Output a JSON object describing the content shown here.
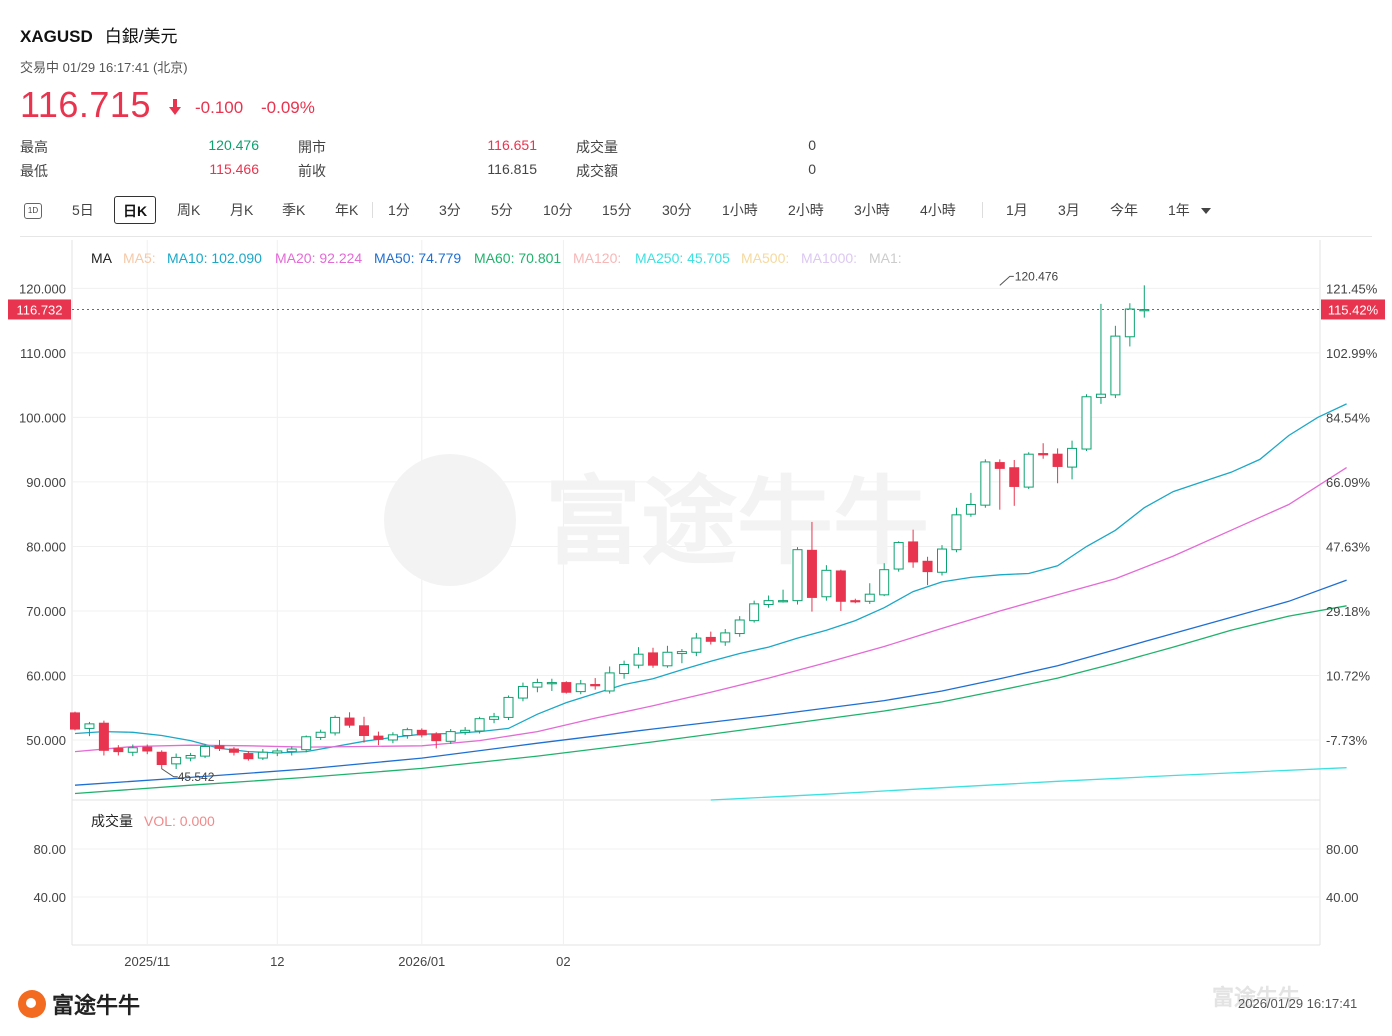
{
  "header": {
    "symbol": "XAGUSD",
    "name": "白銀/美元",
    "status": "交易中 01/29 16:17:41 (北京)",
    "price": "116.715",
    "change": "-0.100",
    "change_pct": "-0.09%",
    "colors": {
      "up": "#0aa26f",
      "down": "#e8344e"
    }
  },
  "stats": [
    {
      "label": "最高",
      "value": "120.476",
      "tone": "up"
    },
    {
      "label": "最低",
      "value": "115.466",
      "tone": "down"
    },
    {
      "label": "開市",
      "value": "116.651",
      "tone": "down"
    },
    {
      "label": "前收",
      "value": "116.815",
      "tone": "neutral"
    },
    {
      "label": "成交量",
      "value": "0",
      "tone": "neutral"
    },
    {
      "label": "成交額",
      "value": "0",
      "tone": "neutral"
    }
  ],
  "tabs": [
    {
      "label": "5日"
    },
    {
      "label": "日K",
      "active": true
    },
    {
      "label": "周K"
    },
    {
      "label": "月K"
    },
    {
      "label": "季K"
    },
    {
      "label": "年K"
    },
    {
      "label": "1分"
    },
    {
      "label": "3分"
    },
    {
      "label": "5分"
    },
    {
      "label": "10分"
    },
    {
      "label": "15分"
    },
    {
      "label": "30分"
    },
    {
      "label": "1小時"
    },
    {
      "label": "2小時"
    },
    {
      "label": "3小時"
    },
    {
      "label": "4小時"
    },
    {
      "label": "1月"
    },
    {
      "label": "3月"
    },
    {
      "label": "今年"
    },
    {
      "label": "1年"
    }
  ],
  "icons": {
    "interval_toggle": "1D",
    "dropdown": "chevron-down-icon",
    "price_arrow": "arrow-down-icon"
  },
  "chart_data": {
    "type": "candlestick",
    "ma_label": "MA",
    "ma_legend": [
      {
        "name": "MA5",
        "text": "MA5:",
        "color": "#f5c9a8"
      },
      {
        "name": "MA10",
        "text": "MA10: 102.090",
        "color": "#1ba8c7"
      },
      {
        "name": "MA20",
        "text": "MA20: 92.224",
        "color": "#e46ad6"
      },
      {
        "name": "MA50",
        "text": "MA50: 74.779",
        "color": "#1f6fd1"
      },
      {
        "name": "MA60",
        "text": "MA60: 70.801",
        "color": "#20b26c"
      },
      {
        "name": "MA120",
        "text": "MA120:",
        "color": "#f7b7b7"
      },
      {
        "name": "MA250",
        "text": "MA250: 45.705",
        "color": "#3ee0e0"
      },
      {
        "name": "MA500",
        "text": "MA500:",
        "color": "#f5d9a0"
      },
      {
        "name": "MA1000",
        "text": "MA1000:",
        "color": "#dcc8f2"
      },
      {
        "name": "MA1",
        "text": "MA1:",
        "color": "#cccccc"
      }
    ],
    "y_ticks": [
      "120.000",
      "110.000",
      "100.000",
      "90.000",
      "80.000",
      "70.000",
      "60.000",
      "50.000"
    ],
    "y_tick_values": [
      120,
      110,
      100,
      90,
      80,
      70,
      60,
      50
    ],
    "pct_ticks": [
      "121.45%",
      "102.99%",
      "84.54%",
      "66.09%",
      "47.63%",
      "29.18%",
      "10.72%",
      "-7.73%"
    ],
    "ylim": [
      40.7,
      127.5
    ],
    "x_labels": [
      {
        "label": "2025/11",
        "index": 5
      },
      {
        "label": "12",
        "index": 14
      },
      {
        "label": "2026/01",
        "index": 24
      },
      {
        "label": "02",
        "index": 33.8
      }
    ],
    "crosshair": {
      "price_label": "116.732",
      "pct_label": "115.42%",
      "value": 116.732
    },
    "annotations": [
      {
        "text": "120.476",
        "value": 120.476,
        "index": 64
      },
      {
        "text": "45.542",
        "value": 45.542,
        "index": 6
      }
    ],
    "candles": [
      {
        "o": 54.2,
        "h": 54.4,
        "l": 51.5,
        "c": 51.7
      },
      {
        "o": 51.8,
        "h": 52.8,
        "l": 50.6,
        "c": 52.5
      },
      {
        "o": 52.6,
        "h": 53.0,
        "l": 47.6,
        "c": 48.4
      },
      {
        "o": 48.7,
        "h": 49.2,
        "l": 47.6,
        "c": 48.2
      },
      {
        "o": 48.1,
        "h": 49.3,
        "l": 47.5,
        "c": 48.8
      },
      {
        "o": 48.9,
        "h": 49.3,
        "l": 47.8,
        "c": 48.3
      },
      {
        "o": 48.1,
        "h": 48.4,
        "l": 45.5,
        "c": 46.2
      },
      {
        "o": 46.3,
        "h": 47.9,
        "l": 45.5,
        "c": 47.3
      },
      {
        "o": 47.2,
        "h": 48.0,
        "l": 46.7,
        "c": 47.6
      },
      {
        "o": 47.5,
        "h": 49.4,
        "l": 47.2,
        "c": 49.0
      },
      {
        "o": 49.1,
        "h": 50.0,
        "l": 48.3,
        "c": 48.7
      },
      {
        "o": 48.6,
        "h": 48.9,
        "l": 47.6,
        "c": 48.1
      },
      {
        "o": 47.9,
        "h": 48.3,
        "l": 46.8,
        "c": 47.1
      },
      {
        "o": 47.2,
        "h": 48.6,
        "l": 46.9,
        "c": 48.1
      },
      {
        "o": 48.0,
        "h": 48.7,
        "l": 47.5,
        "c": 48.3
      },
      {
        "o": 48.2,
        "h": 49.0,
        "l": 47.6,
        "c": 48.6
      },
      {
        "o": 48.5,
        "h": 50.7,
        "l": 48.1,
        "c": 50.5
      },
      {
        "o": 50.4,
        "h": 51.6,
        "l": 50.0,
        "c": 51.2
      },
      {
        "o": 51.1,
        "h": 53.8,
        "l": 50.7,
        "c": 53.5
      },
      {
        "o": 53.4,
        "h": 54.3,
        "l": 51.9,
        "c": 52.3
      },
      {
        "o": 52.2,
        "h": 53.6,
        "l": 49.6,
        "c": 50.7
      },
      {
        "o": 50.6,
        "h": 51.3,
        "l": 49.2,
        "c": 50.1
      },
      {
        "o": 50.0,
        "h": 51.2,
        "l": 49.5,
        "c": 50.8
      },
      {
        "o": 50.7,
        "h": 51.9,
        "l": 50.2,
        "c": 51.6
      },
      {
        "o": 51.5,
        "h": 51.8,
        "l": 50.4,
        "c": 50.8
      },
      {
        "o": 50.9,
        "h": 51.2,
        "l": 48.7,
        "c": 49.9
      },
      {
        "o": 49.8,
        "h": 51.7,
        "l": 49.4,
        "c": 51.3
      },
      {
        "o": 51.2,
        "h": 52.0,
        "l": 50.8,
        "c": 51.5
      },
      {
        "o": 51.4,
        "h": 53.6,
        "l": 51.0,
        "c": 53.3
      },
      {
        "o": 53.2,
        "h": 54.2,
        "l": 52.6,
        "c": 53.6
      },
      {
        "o": 53.5,
        "h": 56.9,
        "l": 53.1,
        "c": 56.6
      },
      {
        "o": 56.5,
        "h": 58.9,
        "l": 56.0,
        "c": 58.3
      },
      {
        "o": 58.2,
        "h": 59.5,
        "l": 57.4,
        "c": 58.9
      },
      {
        "o": 58.8,
        "h": 59.5,
        "l": 57.6,
        "c": 58.9
      },
      {
        "o": 58.9,
        "h": 59.1,
        "l": 57.2,
        "c": 57.4
      },
      {
        "o": 57.5,
        "h": 59.3,
        "l": 57.1,
        "c": 58.7
      },
      {
        "o": 58.6,
        "h": 59.6,
        "l": 57.8,
        "c": 58.4
      },
      {
        "o": 57.6,
        "h": 61.4,
        "l": 57.2,
        "c": 60.4
      },
      {
        "o": 60.3,
        "h": 62.3,
        "l": 59.5,
        "c": 61.7
      },
      {
        "o": 61.6,
        "h": 64.4,
        "l": 61.1,
        "c": 63.3
      },
      {
        "o": 63.5,
        "h": 64.3,
        "l": 61.2,
        "c": 61.6
      },
      {
        "o": 61.5,
        "h": 64.6,
        "l": 61.2,
        "c": 63.6
      },
      {
        "o": 63.4,
        "h": 64.1,
        "l": 61.9,
        "c": 63.7
      },
      {
        "o": 63.6,
        "h": 66.6,
        "l": 63.0,
        "c": 65.8
      },
      {
        "o": 65.9,
        "h": 66.8,
        "l": 64.8,
        "c": 65.3
      },
      {
        "o": 65.2,
        "h": 67.2,
        "l": 64.6,
        "c": 66.6
      },
      {
        "o": 66.5,
        "h": 69.2,
        "l": 66.0,
        "c": 68.6
      },
      {
        "o": 68.5,
        "h": 71.6,
        "l": 68.2,
        "c": 71.1
      },
      {
        "o": 71.0,
        "h": 72.4,
        "l": 70.5,
        "c": 71.6
      },
      {
        "o": 71.5,
        "h": 73.3,
        "l": 71.3,
        "c": 71.6
      },
      {
        "o": 71.6,
        "h": 79.9,
        "l": 71.0,
        "c": 79.5
      },
      {
        "o": 79.4,
        "h": 83.8,
        "l": 69.9,
        "c": 72.1
      },
      {
        "o": 72.2,
        "h": 77.1,
        "l": 71.6,
        "c": 76.3
      },
      {
        "o": 76.2,
        "h": 76.4,
        "l": 70.0,
        "c": 71.5
      },
      {
        "o": 71.6,
        "h": 71.9,
        "l": 71.2,
        "c": 71.5
      },
      {
        "o": 71.5,
        "h": 74.3,
        "l": 71.1,
        "c": 72.6
      },
      {
        "o": 72.5,
        "h": 77.4,
        "l": 72.3,
        "c": 76.4
      },
      {
        "o": 76.5,
        "h": 80.8,
        "l": 76.1,
        "c": 80.6
      },
      {
        "o": 80.7,
        "h": 82.6,
        "l": 76.7,
        "c": 77.6
      },
      {
        "o": 77.7,
        "h": 78.4,
        "l": 74.0,
        "c": 76.1
      },
      {
        "o": 76.0,
        "h": 80.2,
        "l": 75.5,
        "c": 79.6
      },
      {
        "o": 79.5,
        "h": 86.0,
        "l": 79.1,
        "c": 84.9
      },
      {
        "o": 85.0,
        "h": 88.3,
        "l": 84.6,
        "c": 86.5
      },
      {
        "o": 86.4,
        "h": 93.5,
        "l": 86.0,
        "c": 93.1
      },
      {
        "o": 93.0,
        "h": 93.5,
        "l": 85.7,
        "c": 92.1
      },
      {
        "o": 92.2,
        "h": 93.4,
        "l": 86.3,
        "c": 89.3
      },
      {
        "o": 89.2,
        "h": 94.6,
        "l": 88.9,
        "c": 94.3
      },
      {
        "o": 94.4,
        "h": 96.0,
        "l": 93.6,
        "c": 94.2
      },
      {
        "o": 94.3,
        "h": 95.2,
        "l": 89.8,
        "c": 92.4
      },
      {
        "o": 92.3,
        "h": 96.4,
        "l": 90.4,
        "c": 95.2
      },
      {
        "o": 95.1,
        "h": 103.6,
        "l": 94.8,
        "c": 103.2
      },
      {
        "o": 103.1,
        "h": 117.6,
        "l": 102.1,
        "c": 103.6
      },
      {
        "o": 103.5,
        "h": 114.2,
        "l": 103.0,
        "c": 112.6
      },
      {
        "o": 112.5,
        "h": 117.7,
        "l": 111.0,
        "c": 116.8
      },
      {
        "o": 116.65,
        "h": 120.476,
        "l": 115.466,
        "c": 116.715
      }
    ],
    "ma_series": [
      {
        "name": "MA10",
        "color": "#1ba8c7",
        "points": [
          [
            0,
            51.0
          ],
          [
            2,
            51.3
          ],
          [
            4,
            51.2
          ],
          [
            6,
            50.7
          ],
          [
            8,
            49.9
          ],
          [
            10,
            48.7
          ],
          [
            12,
            48.2
          ],
          [
            14,
            48.0
          ],
          [
            16,
            48.2
          ],
          [
            18,
            49.0
          ],
          [
            20,
            49.8
          ],
          [
            22,
            50.4
          ],
          [
            24,
            50.9
          ],
          [
            26,
            51.0
          ],
          [
            28,
            51.3
          ],
          [
            30,
            51.8
          ],
          [
            32,
            54.0
          ],
          [
            34,
            55.8
          ],
          [
            36,
            57.2
          ],
          [
            38,
            58.6
          ],
          [
            40,
            59.5
          ],
          [
            42,
            60.9
          ],
          [
            44,
            62.2
          ],
          [
            46,
            63.4
          ],
          [
            48,
            64.4
          ],
          [
            50,
            65.8
          ],
          [
            52,
            67.0
          ],
          [
            54,
            68.5
          ],
          [
            56,
            70.5
          ],
          [
            58,
            73.0
          ],
          [
            60,
            74.5
          ],
          [
            62,
            75.2
          ],
          [
            64,
            75.6
          ],
          [
            66,
            75.8
          ],
          [
            68,
            77.0
          ],
          [
            70,
            80.0
          ],
          [
            72,
            82.5
          ],
          [
            74,
            86.0
          ],
          [
            76,
            88.5
          ],
          [
            78,
            90.0
          ],
          [
            80,
            91.5
          ],
          [
            82,
            93.5
          ],
          [
            84,
            97.2
          ],
          [
            86,
            100.0
          ],
          [
            88,
            102.09
          ]
        ]
      },
      {
        "name": "MA20",
        "color": "#e46ad6",
        "points": [
          [
            0,
            48.2
          ],
          [
            4,
            49.0
          ],
          [
            8,
            49.2
          ],
          [
            12,
            49.1
          ],
          [
            16,
            48.9
          ],
          [
            20,
            49.0
          ],
          [
            24,
            49.1
          ],
          [
            28,
            49.9
          ],
          [
            32,
            51.3
          ],
          [
            36,
            53.4
          ],
          [
            40,
            55.3
          ],
          [
            44,
            57.4
          ],
          [
            48,
            59.6
          ],
          [
            52,
            62.0
          ],
          [
            56,
            64.5
          ],
          [
            60,
            67.3
          ],
          [
            64,
            70.0
          ],
          [
            68,
            72.5
          ],
          [
            72,
            75.0
          ],
          [
            76,
            78.5
          ],
          [
            80,
            82.5
          ],
          [
            84,
            86.5
          ],
          [
            88,
            92.224
          ]
        ]
      },
      {
        "name": "MA50",
        "color": "#1f6fd1",
        "points": [
          [
            0,
            43.0
          ],
          [
            8,
            44.2
          ],
          [
            16,
            45.5
          ],
          [
            24,
            47.2
          ],
          [
            32,
            49.5
          ],
          [
            40,
            51.7
          ],
          [
            48,
            53.8
          ],
          [
            56,
            56.1
          ],
          [
            60,
            57.6
          ],
          [
            64,
            59.5
          ],
          [
            68,
            61.5
          ],
          [
            72,
            64.0
          ],
          [
            76,
            66.5
          ],
          [
            80,
            69.0
          ],
          [
            84,
            71.5
          ],
          [
            88,
            74.779
          ]
        ]
      },
      {
        "name": "MA60",
        "color": "#20b26c",
        "points": [
          [
            0,
            41.7
          ],
          [
            8,
            43.0
          ],
          [
            16,
            44.2
          ],
          [
            24,
            45.6
          ],
          [
            32,
            47.5
          ],
          [
            40,
            49.7
          ],
          [
            48,
            52.1
          ],
          [
            56,
            54.5
          ],
          [
            60,
            55.9
          ],
          [
            64,
            57.7
          ],
          [
            68,
            59.6
          ],
          [
            72,
            61.9
          ],
          [
            76,
            64.4
          ],
          [
            80,
            67.0
          ],
          [
            84,
            69.2
          ],
          [
            88,
            70.801
          ]
        ]
      },
      {
        "name": "MA250",
        "color": "#3ee0e0",
        "points": [
          [
            44,
            40.7
          ],
          [
            52,
            41.6
          ],
          [
            60,
            42.6
          ],
          [
            68,
            43.6
          ],
          [
            76,
            44.5
          ],
          [
            88,
            45.705
          ]
        ]
      }
    ],
    "volume": {
      "label": "成交量",
      "vol_text": "VOL: 0.000",
      "ticks": [
        "80.00",
        "40.00"
      ]
    }
  },
  "footer": {
    "brand": "富途牛牛",
    "watermark": "富途牛牛",
    "timestamp": "2026/01/29 16:17:41"
  }
}
